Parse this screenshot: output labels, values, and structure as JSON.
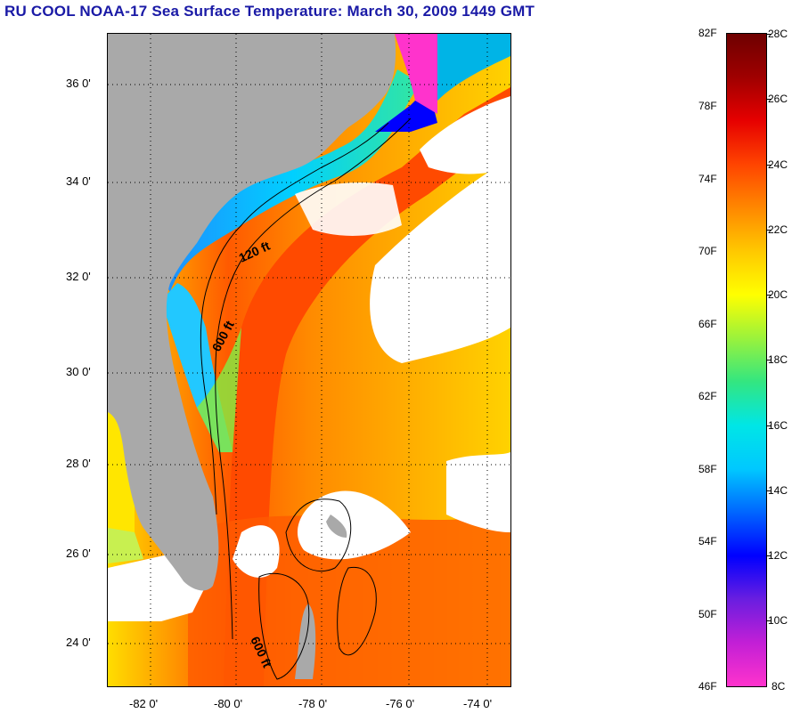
{
  "title": "RU COOL  NOAA-17  Sea Surface Temperature:  March 30, 2009 1449 GMT",
  "map": {
    "lat_labels": [
      "36 0'",
      "34 0'",
      "32 0'",
      "30 0'",
      "28 0'",
      "26 0'",
      "24 0'"
    ],
    "lon_labels": [
      "-82 0'",
      "-80 0'",
      "-78 0'",
      "-76 0'",
      "-74 0'"
    ],
    "lat_range": [
      23.0,
      37.0
    ],
    "lon_range": [
      -83.0,
      -73.0
    ],
    "grid": "dotted",
    "contour_labels": [
      "120 ft",
      "600 ft",
      "600 ft"
    ],
    "colors": {
      "land": "#a9a9a9",
      "cloud": "#ffffff",
      "grid": "#000000"
    }
  },
  "colorbar": {
    "fahrenheit_labels": [
      "82F",
      "78F",
      "74F",
      "70F",
      "66F",
      "62F",
      "58F",
      "54F",
      "50F",
      "46F"
    ],
    "celsius_labels": [
      "28C",
      "26C",
      "24C",
      "22C",
      "20C",
      "18C",
      "16C",
      "14C",
      "12C",
      "10C",
      "8C"
    ],
    "range_c": [
      8,
      28
    ],
    "colors": [
      "#ff33cc",
      "#c21fd6",
      "#6a1ee0",
      "#0000ff",
      "#0066ff",
      "#00c8ff",
      "#00e6e6",
      "#33e680",
      "#9af23c",
      "#ffff00",
      "#ffc800",
      "#ff8800",
      "#ff4400",
      "#e60000",
      "#a00000",
      "#6e0000"
    ]
  }
}
